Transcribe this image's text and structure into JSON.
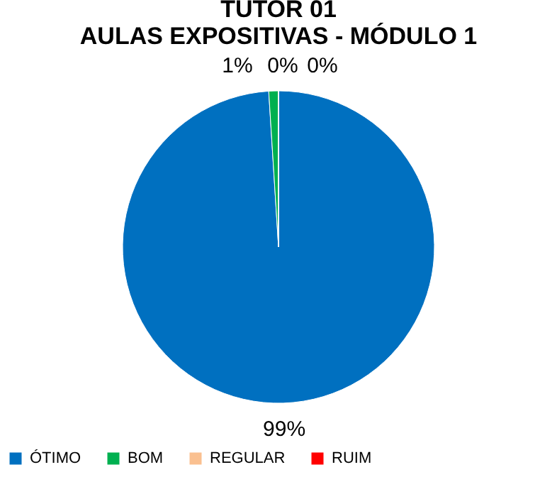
{
  "chart_data": {
    "type": "pie",
    "title": "TUTOR 01\nAULAS EXPOSITIVAS - MÓDULO 1",
    "categories": [
      "ÓTIMO",
      "BOM",
      "REGULAR",
      "RUIM"
    ],
    "values": [
      99,
      1,
      0,
      0
    ],
    "colors": [
      "#0070c0",
      "#00b050",
      "#fac090",
      "#ff0000"
    ],
    "value_labels": [
      "99%",
      "1%",
      "0%",
      "0%"
    ],
    "legend": "bottom"
  }
}
